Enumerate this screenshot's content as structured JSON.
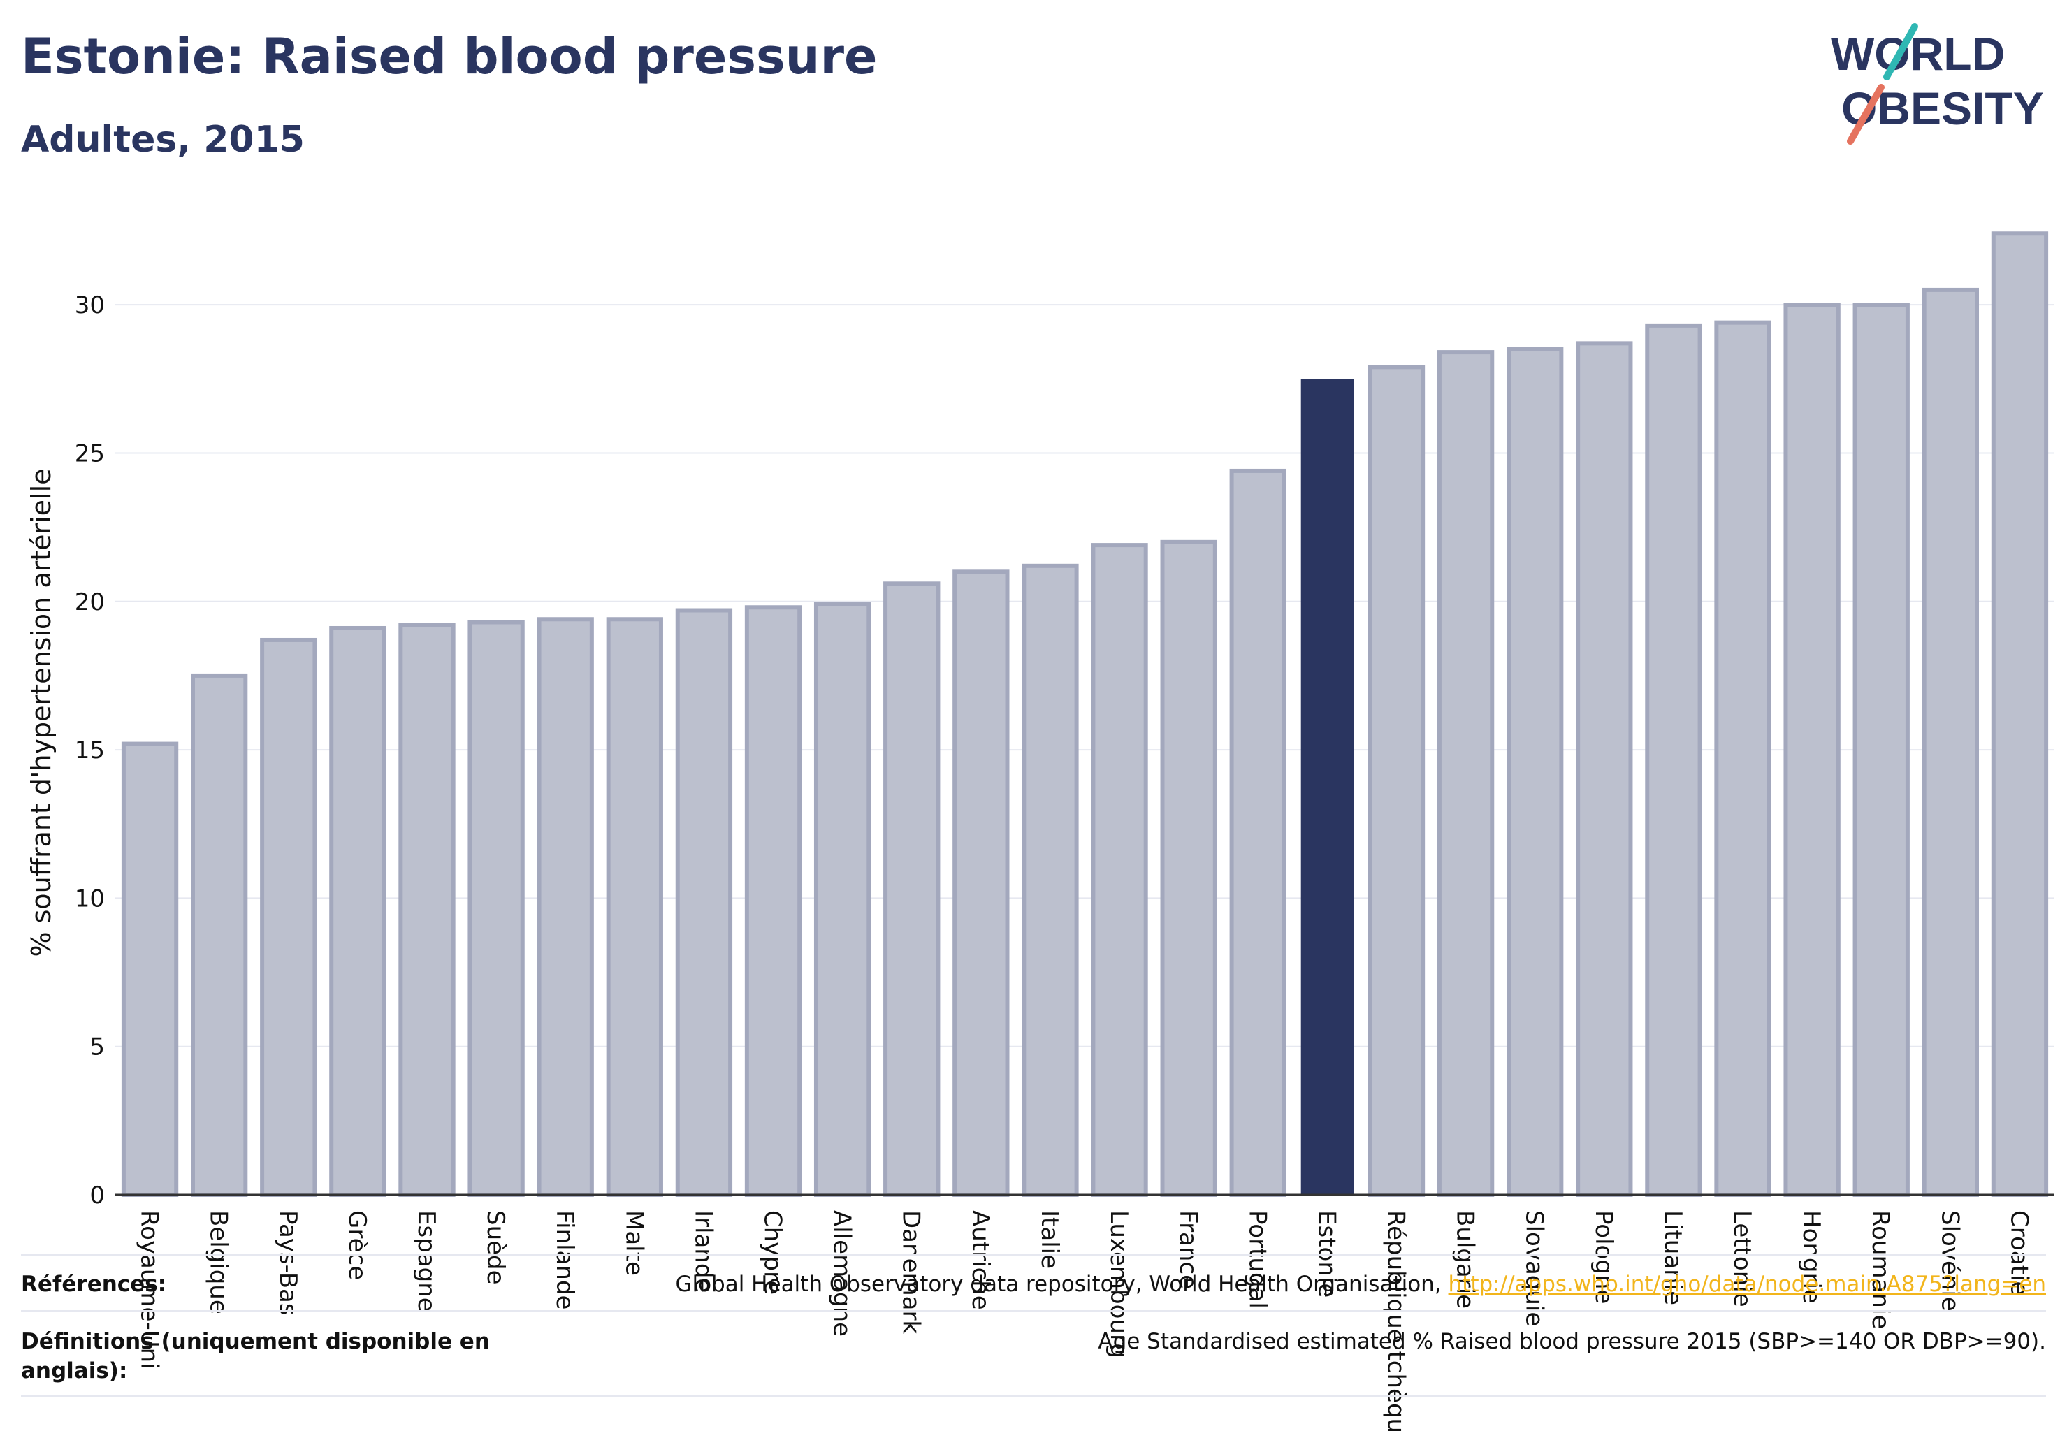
{
  "header": {
    "title": "Estonie: Raised blood pressure",
    "subtitle": "Adultes, 2015"
  },
  "logo": {
    "line1": "WORLD",
    "line2": "OBESITY"
  },
  "colors": {
    "highlight": "#2a3560",
    "bar_fill": "#bcc0ce",
    "bar_stroke": "#a3a8bd",
    "grid": "#e6e8f0",
    "link": "#f2b51c",
    "logo_teal": "#2fb7b3",
    "logo_coral": "#e5735f"
  },
  "chart_data": {
    "type": "bar",
    "title": "Estonie: Raised blood pressure",
    "subtitle": "Adultes, 2015",
    "xlabel": "",
    "ylabel": "% souffrant d'hypertension artérielle",
    "ylim": [
      0,
      32.5
    ],
    "yticks": [
      0,
      5,
      10,
      15,
      20,
      25,
      30
    ],
    "grid": true,
    "highlight": "Estonie",
    "categories": [
      "Royaume-Uni",
      "Belgique",
      "Pays-Bas",
      "Grèce",
      "Espagne",
      "Suède",
      "Finlande",
      "Malte",
      "Irlande",
      "Chypre",
      "Allemagne",
      "Danemark",
      "Autriche",
      "Italie",
      "Luxembourg",
      "France",
      "Portugal",
      "Estonie",
      "République tchèque",
      "Bulgarie",
      "Slovaquie",
      "Pologne",
      "Lituanie",
      "Lettonie",
      "Hongrie",
      "Roumanie",
      "Slovénie",
      "Croatie"
    ],
    "values": [
      15.2,
      17.5,
      18.7,
      19.1,
      19.2,
      19.3,
      19.4,
      19.4,
      19.7,
      19.8,
      19.9,
      20.6,
      21.0,
      21.2,
      21.9,
      22.0,
      24.4,
      27.5,
      27.9,
      28.4,
      28.5,
      28.7,
      29.3,
      29.4,
      30.0,
      30.0,
      30.5,
      32.4
    ]
  },
  "footer": {
    "references_label": "Références:",
    "references_text": "Global Health Observatory data repository, World Health Organisation, ",
    "references_link": "http://apps.who.int/gho/data/node.main.A875?lang=en",
    "definitions_label_1": "Définitions (uniquement disponible en",
    "definitions_label_2": "anglais):",
    "definitions_text": "Age Standardised estimated % Raised blood pressure 2015 (SBP>=140 OR DBP>=90)."
  }
}
